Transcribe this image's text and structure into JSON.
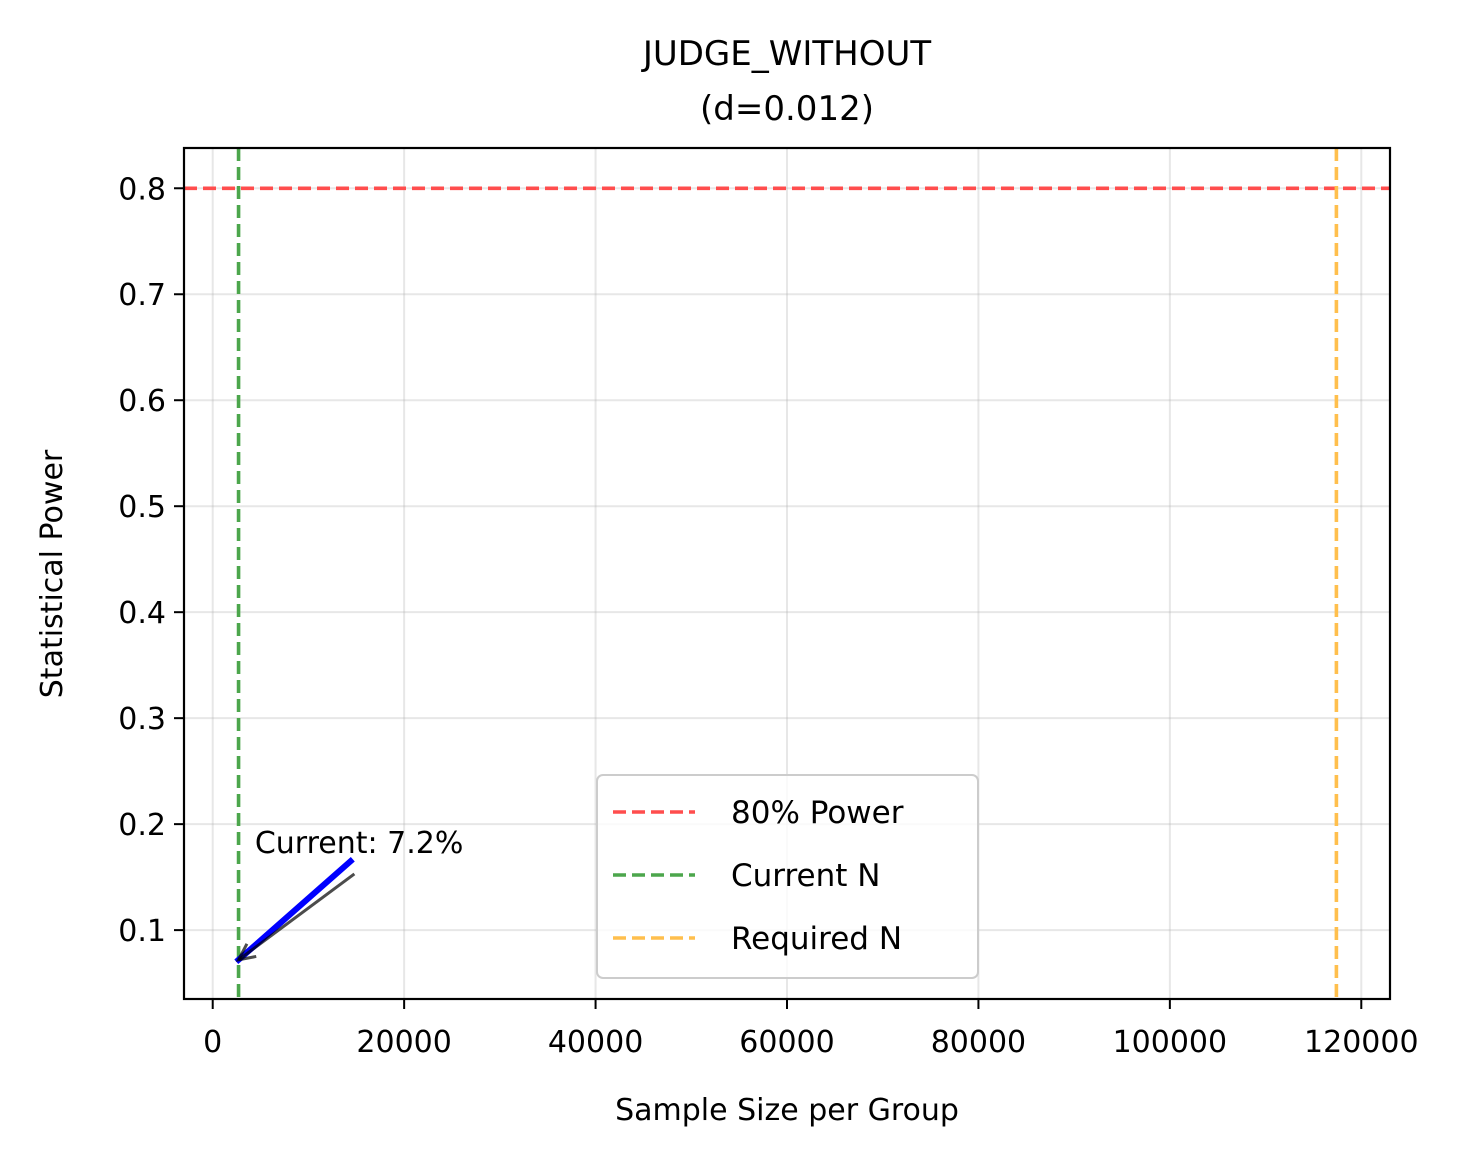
{
  "chart_data": {
    "type": "line",
    "title": "JUDGE_WITHOUT",
    "subtitle": "(d=0.012)",
    "xlabel": "Sample Size per Group",
    "ylabel": "Statistical Power",
    "xlim": [
      -3000,
      123000
    ],
    "ylim": [
      0.035,
      0.838
    ],
    "xticks": [
      0,
      20000,
      40000,
      60000,
      80000,
      100000,
      120000
    ],
    "yticks": [
      0.1,
      0.2,
      0.3,
      0.4,
      0.5,
      0.6,
      0.7,
      0.8
    ],
    "grid": true,
    "series": [
      {
        "color": "#0000ff",
        "x": [
          2700,
          14400
        ],
        "y": [
          0.072,
          0.165
        ]
      }
    ],
    "reference_lines": [
      {
        "name": "80% Power",
        "orientation": "horizontal",
        "value": 0.8,
        "color": "#ff4d4d"
      },
      {
        "name": "Current N",
        "orientation": "vertical",
        "value": 2700,
        "color": "#4ca64c"
      },
      {
        "name": "Required N",
        "orientation": "vertical",
        "value": 117400,
        "color": "#ffbf4d"
      }
    ],
    "annotation": {
      "text": "Current: 7.2%",
      "point": {
        "x": 2700,
        "y": 0.072
      },
      "text_anchor": {
        "x": 4400,
        "y": 0.165
      },
      "tail": {
        "x": 14800,
        "y": 0.153
      }
    },
    "legend": {
      "position": "lower-center",
      "entries": [
        "80% Power",
        "Current N",
        "Required N"
      ]
    }
  }
}
